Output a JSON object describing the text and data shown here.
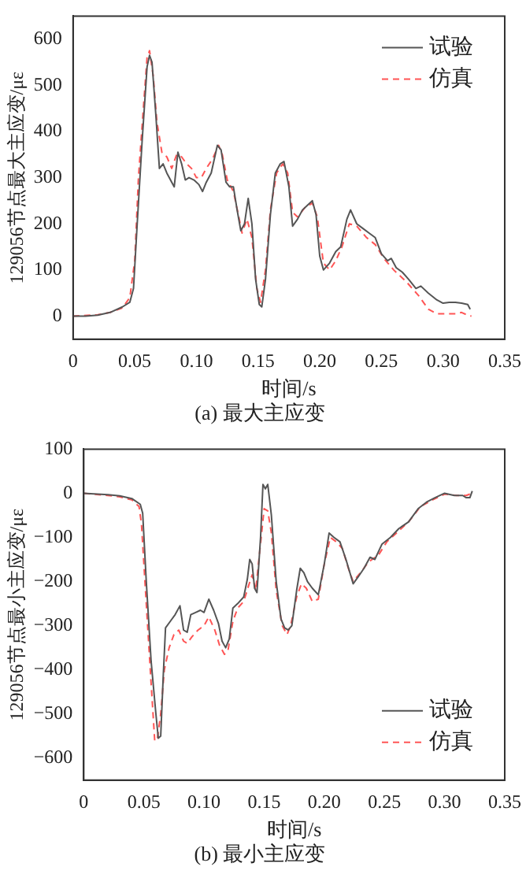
{
  "chart_data": [
    {
      "type": "line",
      "title": "(a) 最大主应变",
      "xlabel": "时间/s",
      "ylabel": "129056节点最大主应变/με",
      "xlim": [
        0,
        0.35
      ],
      "xticks": [
        0,
        0.05,
        {
          "value": 0.1,
          "label": "0.10"
        },
        0.15,
        {
          "value": 0.2,
          "label": "0.20"
        },
        0.25,
        {
          "value": 0.3,
          "label": "0.30"
        },
        0.35
      ],
      "ylim": [
        -50,
        650
      ],
      "yticks": [
        0,
        100,
        200,
        300,
        400,
        500,
        600
      ],
      "grid": false,
      "legend": "top right",
      "marker": "none",
      "series": [
        {
          "name": "试验",
          "color": "#555555",
          "line_style": "solid",
          "x": [
            0,
            0.01,
            0.02,
            0.03,
            0.04,
            0.046,
            0.049,
            0.052,
            0.056,
            0.06,
            0.062,
            0.064,
            0.067,
            0.07,
            0.073,
            0.076,
            0.08,
            0.082,
            0.085,
            0.088,
            0.091,
            0.094,
            0.098,
            0.102,
            0.105,
            0.108,
            0.112,
            0.117,
            0.12,
            0.124,
            0.127,
            0.13,
            0.133,
            0.136,
            0.139,
            0.142,
            0.145,
            0.148,
            0.151,
            0.153,
            0.156,
            0.16,
            0.164,
            0.168,
            0.171,
            0.175,
            0.178,
            0.182,
            0.186,
            0.19,
            0.194,
            0.197,
            0.2,
            0.203,
            0.208,
            0.213,
            0.217,
            0.222,
            0.225,
            0.23,
            0.235,
            0.24,
            0.245,
            0.25,
            0.255,
            0.258,
            0.262,
            0.267,
            0.272,
            0.278,
            0.282,
            0.288,
            0.295,
            0.3,
            0.305,
            0.31,
            0.315,
            0.32,
            0.322
          ],
          "values": [
            0,
            0,
            2,
            8,
            20,
            30,
            60,
            200,
            380,
            540,
            565,
            550,
            440,
            320,
            330,
            310,
            290,
            280,
            355,
            330,
            295,
            300,
            295,
            285,
            270,
            290,
            310,
            370,
            360,
            290,
            280,
            280,
            230,
            185,
            200,
            255,
            200,
            80,
            25,
            20,
            80,
            220,
            310,
            330,
            335,
            280,
            195,
            210,
            230,
            240,
            250,
            220,
            130,
            100,
            115,
            140,
            150,
            210,
            230,
            200,
            190,
            180,
            170,
            135,
            120,
            125,
            105,
            95,
            80,
            60,
            65,
            50,
            35,
            28,
            30,
            30,
            28,
            25,
            15
          ]
        },
        {
          "name": "仿真",
          "color": "#ff5555",
          "line_style": "dashed",
          "x": [
            0,
            0.02,
            0.03,
            0.04,
            0.046,
            0.05,
            0.053,
            0.057,
            0.06,
            0.062,
            0.065,
            0.068,
            0.072,
            0.076,
            0.08,
            0.084,
            0.088,
            0.092,
            0.096,
            0.1,
            0.104,
            0.108,
            0.113,
            0.118,
            0.121,
            0.125,
            0.13,
            0.134,
            0.137,
            0.141,
            0.145,
            0.149,
            0.152,
            0.156,
            0.16,
            0.165,
            0.17,
            0.174,
            0.178,
            0.182,
            0.188,
            0.194,
            0.198,
            0.203,
            0.208,
            0.213,
            0.218,
            0.224,
            0.23,
            0.238,
            0.245,
            0.252,
            0.26,
            0.27,
            0.28,
            0.288,
            0.295,
            0.305,
            0.31,
            0.315,
            0.32,
            0.323
          ],
          "values": [
            0,
            3,
            8,
            18,
            40,
            120,
            300,
            450,
            560,
            575,
            520,
            420,
            355,
            345,
            320,
            350,
            345,
            330,
            320,
            300,
            300,
            320,
            340,
            370,
            350,
            295,
            270,
            220,
            180,
            210,
            170,
            60,
            30,
            100,
            230,
            310,
            330,
            310,
            225,
            215,
            235,
            245,
            215,
            115,
            100,
            120,
            150,
            200,
            195,
            170,
            155,
            125,
            100,
            75,
            45,
            15,
            5,
            5,
            5,
            8,
            2,
            0
          ]
        }
      ]
    },
    {
      "type": "line",
      "title": "(b) 最小主应变",
      "xlabel": "时间/s",
      "ylabel": "129056节点最小主应变/με",
      "xlim": [
        0,
        0.35
      ],
      "xticks": [
        0,
        0.05,
        {
          "value": 0.1,
          "label": "0.10"
        },
        0.15,
        {
          "value": 0.2,
          "label": "0.20"
        },
        0.25,
        {
          "value": 0.3,
          "label": "0.30"
        },
        0.35
      ],
      "ylim": [
        -650,
        100
      ],
      "yticks": [
        -600,
        -500,
        -400,
        -300,
        -200,
        -100,
        0,
        100
      ],
      "grid": false,
      "legend": "bottom right",
      "marker": "none",
      "series": [
        {
          "name": "试验",
          "color": "#555555",
          "line_style": "solid",
          "x": [
            0,
            0.02,
            0.03,
            0.04,
            0.047,
            0.049,
            0.052,
            0.056,
            0.06,
            0.062,
            0.064,
            0.066,
            0.068,
            0.072,
            0.076,
            0.08,
            0.083,
            0.086,
            0.089,
            0.093,
            0.097,
            0.1,
            0.104,
            0.108,
            0.112,
            0.115,
            0.118,
            0.121,
            0.124,
            0.128,
            0.133,
            0.136,
            0.138,
            0.14,
            0.142,
            0.144,
            0.147,
            0.149,
            0.151,
            0.153,
            0.156,
            0.16,
            0.164,
            0.167,
            0.17,
            0.173,
            0.177,
            0.18,
            0.183,
            0.186,
            0.19,
            0.195,
            0.2,
            0.204,
            0.208,
            0.213,
            0.218,
            0.224,
            0.228,
            0.233,
            0.238,
            0.242,
            0.248,
            0.255,
            0.262,
            0.27,
            0.278,
            0.285,
            0.292,
            0.3,
            0.308,
            0.315,
            0.318,
            0.321,
            0.323
          ],
          "values": [
            0,
            -3,
            -6,
            -12,
            -25,
            -45,
            -200,
            -380,
            -500,
            -555,
            -550,
            -420,
            -305,
            -290,
            -275,
            -255,
            -310,
            -315,
            -275,
            -270,
            -265,
            -270,
            -240,
            -265,
            -295,
            -335,
            -350,
            -330,
            -260,
            -250,
            -235,
            -195,
            -150,
            -160,
            -215,
            -225,
            -100,
            20,
            10,
            20,
            -50,
            -200,
            -285,
            -305,
            -310,
            -300,
            -220,
            -170,
            -180,
            -200,
            -215,
            -230,
            -160,
            -90,
            -100,
            -110,
            -150,
            -205,
            -190,
            -170,
            -145,
            -150,
            -115,
            -100,
            -80,
            -65,
            -35,
            -20,
            -10,
            0,
            -5,
            -5,
            -10,
            -10,
            5
          ]
        },
        {
          "name": "仿真",
          "color": "#ff5555",
          "line_style": "dashed",
          "x": [
            0,
            0.02,
            0.03,
            0.04,
            0.046,
            0.048,
            0.052,
            0.056,
            0.059,
            0.061,
            0.064,
            0.067,
            0.071,
            0.075,
            0.079,
            0.083,
            0.086,
            0.09,
            0.095,
            0.1,
            0.104,
            0.109,
            0.113,
            0.117,
            0.12,
            0.124,
            0.128,
            0.133,
            0.137,
            0.14,
            0.143,
            0.146,
            0.15,
            0.153,
            0.156,
            0.16,
            0.165,
            0.169,
            0.172,
            0.177,
            0.181,
            0.185,
            0.19,
            0.195,
            0.2,
            0.205,
            0.21,
            0.215,
            0.22,
            0.224,
            0.23,
            0.237,
            0.245,
            0.252,
            0.26,
            0.27,
            0.28,
            0.29,
            0.3,
            0.31,
            0.318,
            0.323
          ],
          "values": [
            0,
            -5,
            -8,
            -15,
            -30,
            -70,
            -250,
            -430,
            -560,
            -560,
            -500,
            -400,
            -350,
            -320,
            -310,
            -335,
            -340,
            -325,
            -310,
            -300,
            -280,
            -310,
            -345,
            -365,
            -355,
            -290,
            -260,
            -245,
            -210,
            -185,
            -220,
            -140,
            -35,
            -40,
            -90,
            -220,
            -300,
            -320,
            -300,
            -235,
            -205,
            -215,
            -245,
            -240,
            -160,
            -100,
            -110,
            -125,
            -170,
            -200,
            -180,
            -155,
            -140,
            -110,
            -90,
            -65,
            -30,
            -15,
            -2,
            -5,
            -5,
            0
          ]
        }
      ]
    }
  ]
}
